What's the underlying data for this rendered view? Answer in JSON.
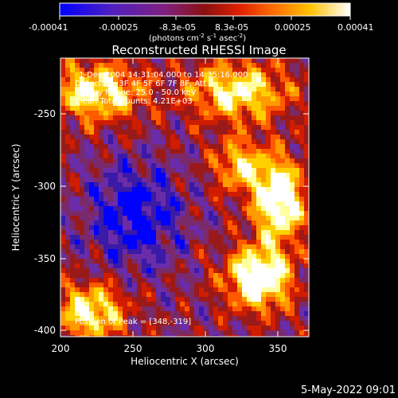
{
  "colorbar": {
    "ticks": [
      "-0.00041",
      "-0.00025",
      "-8.3e-05",
      "8.3e-05",
      "0.00025",
      "0.00041"
    ],
    "units_prefix": "(photons cm",
    "units_sup1": "-2",
    "units_mid": " s",
    "units_sup2": "-1",
    "units_mid2": " asec",
    "units_sup3": "-2",
    "units_suffix": ")",
    "colors": [
      "#0000ff",
      "#3a1aa6",
      "#6a2ca8",
      "#7a2a6a",
      "#9a1a1a",
      "#d01c00",
      "#ff5a00",
      "#ff9a00",
      "#ffd000",
      "#ffffa0",
      "#ffffff"
    ]
  },
  "plot": {
    "title": "Reconstructed RHESSI Image",
    "xlabel": "Heliocentric X (arcsec)",
    "ylabel": "Heliocentric Y (arcsec)",
    "x_ticks": [
      "200",
      "250",
      "300",
      "350"
    ],
    "y_ticks": [
      "-250",
      "-300",
      "-350",
      "-400"
    ],
    "info": [
      "1-Dec-2004 14:31:04.000 to 14:35:16.000",
      "Detectors: 3F 4F 5F 6F 7F 8F, Att 0",
      "Energy Range: 25.0 - 50.0 keV",
      "Clean    Total counts: 4.21E+03"
    ],
    "peak": "Position of Peak = [348,-319]"
  },
  "timestamp": "5-May-2022 09:01"
}
